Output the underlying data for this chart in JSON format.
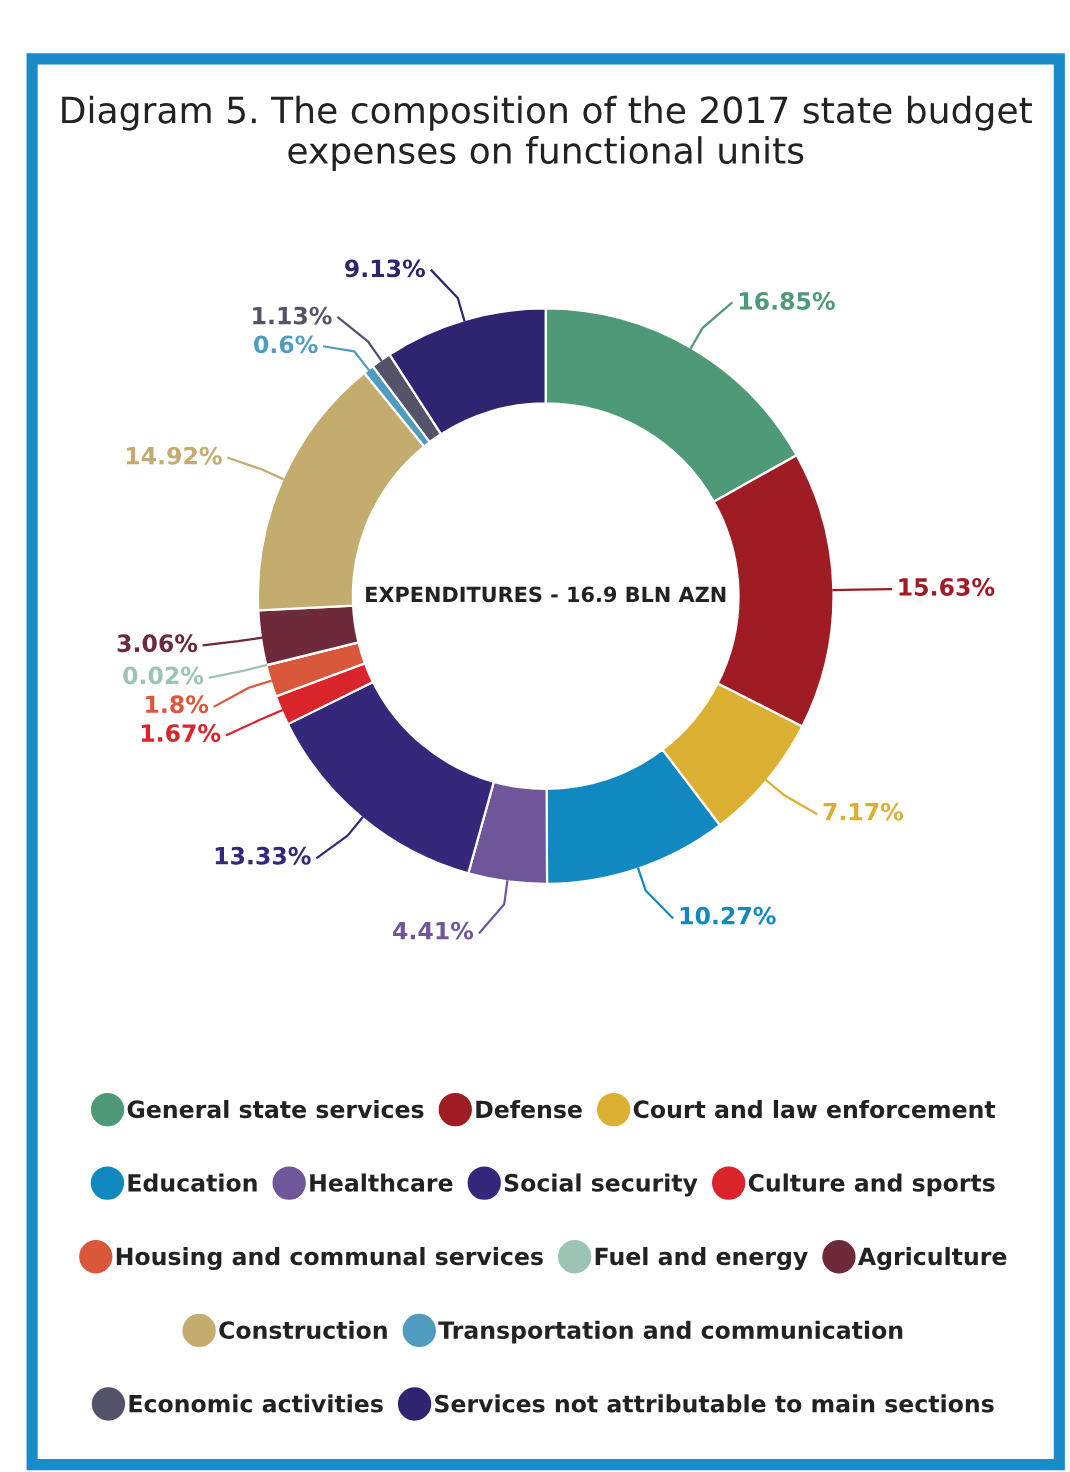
{
  "chart_data": {
    "type": "donut",
    "title": "Diagram 5. The composition of the 2017 state budget expenses on functional units",
    "annotations": [
      "EXPENDITURES - 16.9 BLN AZN"
    ],
    "categories": [
      "General state services",
      "Defense",
      "Court and law enforcement",
      "Education",
      "Healthcare",
      "Social security",
      "Culture and sports",
      "Housing and communal services",
      "Fuel and energy",
      "Agriculture",
      "Construction",
      "Transportation and communication",
      "Economic activities",
      "Services not attributable to main sections"
    ],
    "values": [
      16.85,
      15.63,
      7.17,
      10.27,
      4.41,
      13.33,
      1.67,
      1.8,
      0.02,
      3.06,
      14.92,
      0.6,
      1.13,
      9.13
    ],
    "value_labels": [
      "16.85%",
      "15.63%",
      "7.17%",
      "10.27%",
      "4.41%",
      "13.33%",
      "1.67%",
      "1.8%",
      "0.02%",
      "3.06%",
      "14.92%",
      "0.6%",
      "1.13%",
      "9.13%"
    ],
    "colors": [
      "#4e9a78",
      "#a01c24",
      "#dcb032",
      "#1188c0",
      "#6f559a",
      "#35287a",
      "#d8242a",
      "#d9573a",
      "#9cc4b4",
      "#6e2a3a",
      "#c4ac6e",
      "#4f9cc0",
      "#53536a",
      "#2e2470"
    ],
    "legend": "bottom"
  }
}
